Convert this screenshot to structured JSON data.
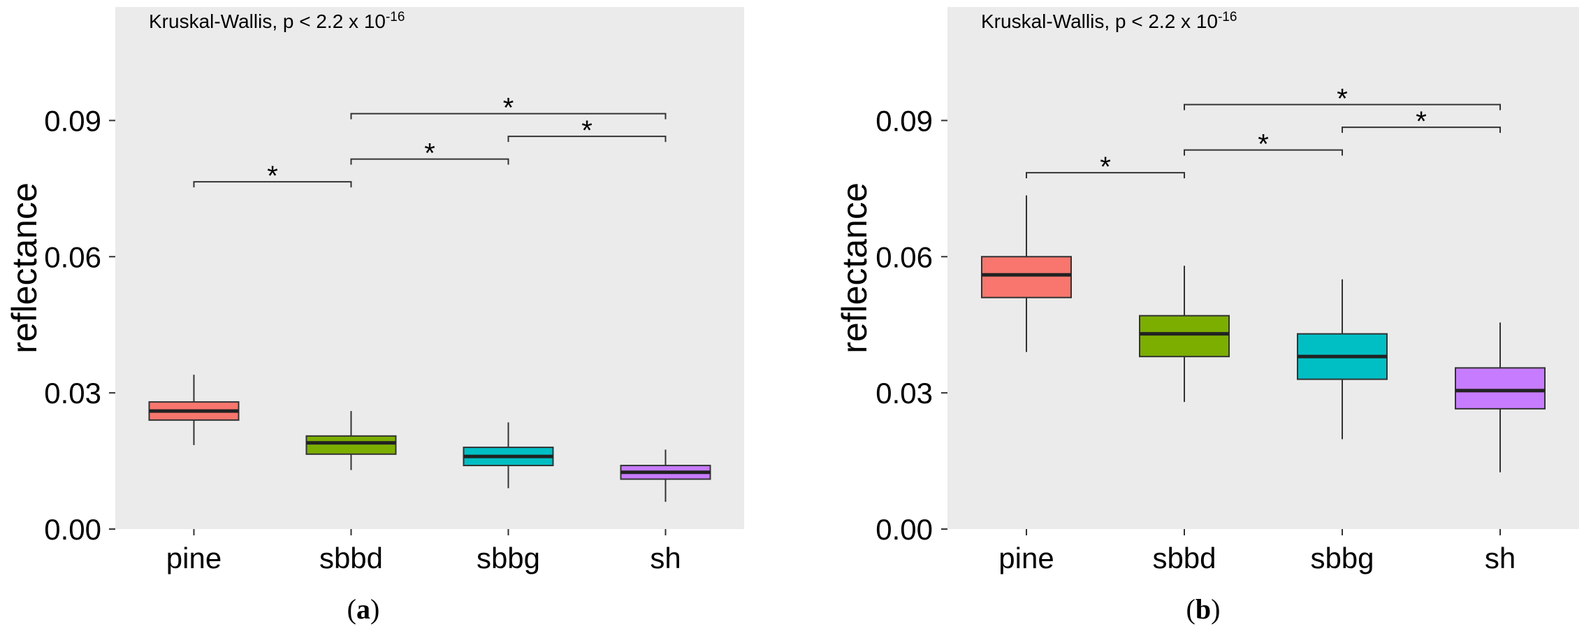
{
  "chart_data": [
    {
      "type": "boxplot",
      "panel_label": "(a)",
      "panel_letter": "a",
      "annotation": {
        "prefix": "Kruskal-Wallis, p < 2.2 x 10",
        "exponent": "-16"
      },
      "ylabel": "reflectance",
      "xlabel": "",
      "ylim": [
        0,
        0.115
      ],
      "yticks": [
        0,
        0.03,
        0.06,
        0.09
      ],
      "ytick_labels": [
        "0.00",
        "0.03",
        "0.06",
        "0.09"
      ],
      "categories": [
        "pine",
        "sbbd",
        "sbbg",
        "sh"
      ],
      "colors": [
        "#F8766D",
        "#7CAE00",
        "#00BFC4",
        "#C77CFF"
      ],
      "boxes": [
        {
          "category": "pine",
          "whisker_low": 0.0185,
          "q1": 0.024,
          "median": 0.026,
          "q3": 0.028,
          "whisker_high": 0.034
        },
        {
          "category": "sbbd",
          "whisker_low": 0.013,
          "q1": 0.0165,
          "median": 0.019,
          "q3": 0.0205,
          "whisker_high": 0.026
        },
        {
          "category": "sbbg",
          "whisker_low": 0.009,
          "q1": 0.014,
          "median": 0.016,
          "q3": 0.018,
          "whisker_high": 0.0235
        },
        {
          "category": "sh",
          "whisker_low": 0.006,
          "q1": 0.011,
          "median": 0.0125,
          "q3": 0.014,
          "whisker_high": 0.0175
        }
      ],
      "significance_brackets": [
        {
          "from": "pine",
          "to": "sbbd",
          "y": 0.0765,
          "label": "*"
        },
        {
          "from": "sbbd",
          "to": "sbbg",
          "y": 0.0815,
          "label": "*"
        },
        {
          "from": "sbbg",
          "to": "sh",
          "y": 0.0865,
          "label": "*"
        },
        {
          "from": "sbbd",
          "to": "sh",
          "y": 0.0915,
          "label": "*"
        }
      ]
    },
    {
      "type": "boxplot",
      "panel_label": "(b)",
      "panel_letter": "b",
      "annotation": {
        "prefix": "Kruskal-Wallis, p < 2.2 x 10",
        "exponent": "-16"
      },
      "ylabel": "reflectance",
      "xlabel": "",
      "ylim": [
        0,
        0.115
      ],
      "yticks": [
        0,
        0.03,
        0.06,
        0.09
      ],
      "ytick_labels": [
        "0.00",
        "0.03",
        "0.06",
        "0.09"
      ],
      "categories": [
        "pine",
        "sbbd",
        "sbbg",
        "sh"
      ],
      "colors": [
        "#F8766D",
        "#7CAE00",
        "#00BFC4",
        "#C77CFF"
      ],
      "boxes": [
        {
          "category": "pine",
          "whisker_low": 0.039,
          "q1": 0.051,
          "median": 0.056,
          "q3": 0.06,
          "whisker_high": 0.0735
        },
        {
          "category": "sbbd",
          "whisker_low": 0.028,
          "q1": 0.038,
          "median": 0.043,
          "q3": 0.047,
          "whisker_high": 0.058
        },
        {
          "category": "sbbg",
          "whisker_low": 0.0198,
          "q1": 0.033,
          "median": 0.038,
          "q3": 0.043,
          "whisker_high": 0.055
        },
        {
          "category": "sh",
          "whisker_low": 0.0125,
          "q1": 0.0265,
          "median": 0.0305,
          "q3": 0.0355,
          "whisker_high": 0.0455
        }
      ],
      "significance_brackets": [
        {
          "from": "pine",
          "to": "sbbd",
          "y": 0.0785,
          "label": "*"
        },
        {
          "from": "sbbd",
          "to": "sbbg",
          "y": 0.0835,
          "label": "*"
        },
        {
          "from": "sbbg",
          "to": "sh",
          "y": 0.0885,
          "label": "*"
        },
        {
          "from": "sbbd",
          "to": "sh",
          "y": 0.0935,
          "label": "*"
        }
      ]
    }
  ]
}
